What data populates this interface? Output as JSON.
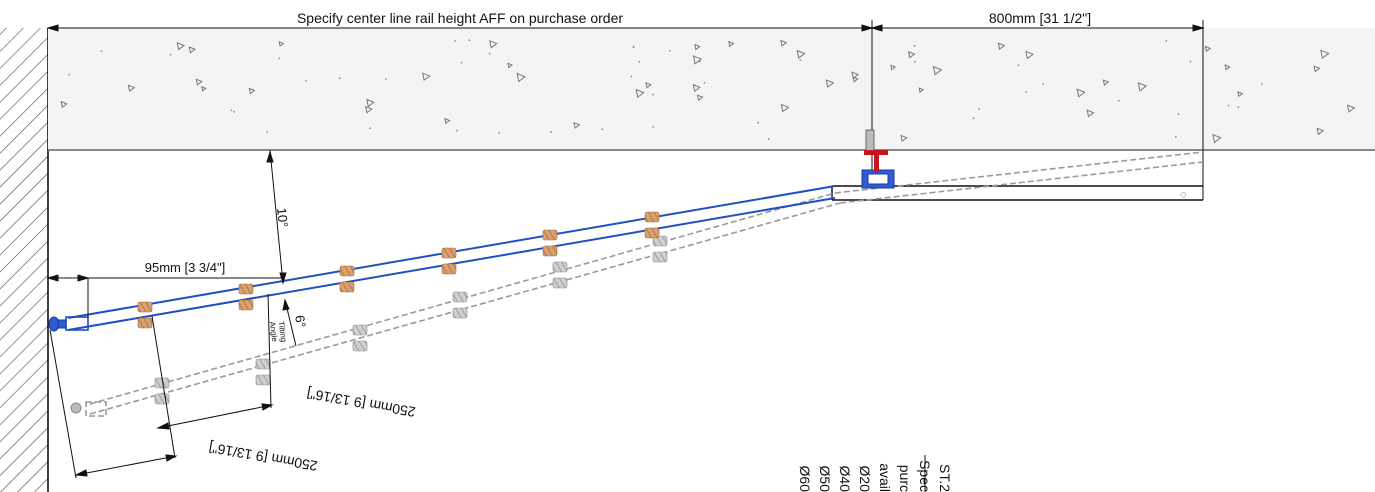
{
  "dimensions": {
    "top_span": "Specify center line rail height AFF on purchase order",
    "top_right": "800mm [31 1/2\"]",
    "angle_top": "10°",
    "offset": "95mm [3 3/4\"]",
    "tilting_angle_value": "6°",
    "tilting_angle_label_1": "Tilting",
    "tilting_angle_label_2": "Angle",
    "length_upper": "250mm [9 13/16\"]",
    "length_lower": "250mm [9 13/16\"]"
  },
  "notes": {
    "lines": [
      "ST.2",
      "Spec",
      "purc",
      "avail",
      "Ø20",
      "Ø40",
      "Ø50",
      "Ø60"
    ]
  },
  "colors": {
    "rail": "#1f4fc1",
    "bracket": "#c5161b",
    "wood": "#c68a55",
    "ghost": "#9a9a9a",
    "line": "#111111"
  }
}
